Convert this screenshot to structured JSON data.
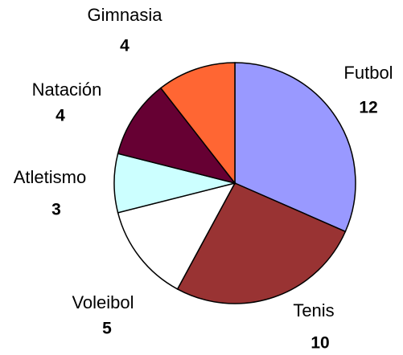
{
  "chart_data": {
    "type": "pie",
    "categories": [
      "Futbol",
      "Tenis",
      "Voleibol",
      "Atletismo",
      "Natación",
      "Gimnasia"
    ],
    "values": [
      12,
      10,
      5,
      3,
      4,
      4
    ],
    "colors": [
      "#9999ff",
      "#993333",
      "#ffffff",
      "#ccffff",
      "#660033",
      "#ff6633"
    ]
  }
}
